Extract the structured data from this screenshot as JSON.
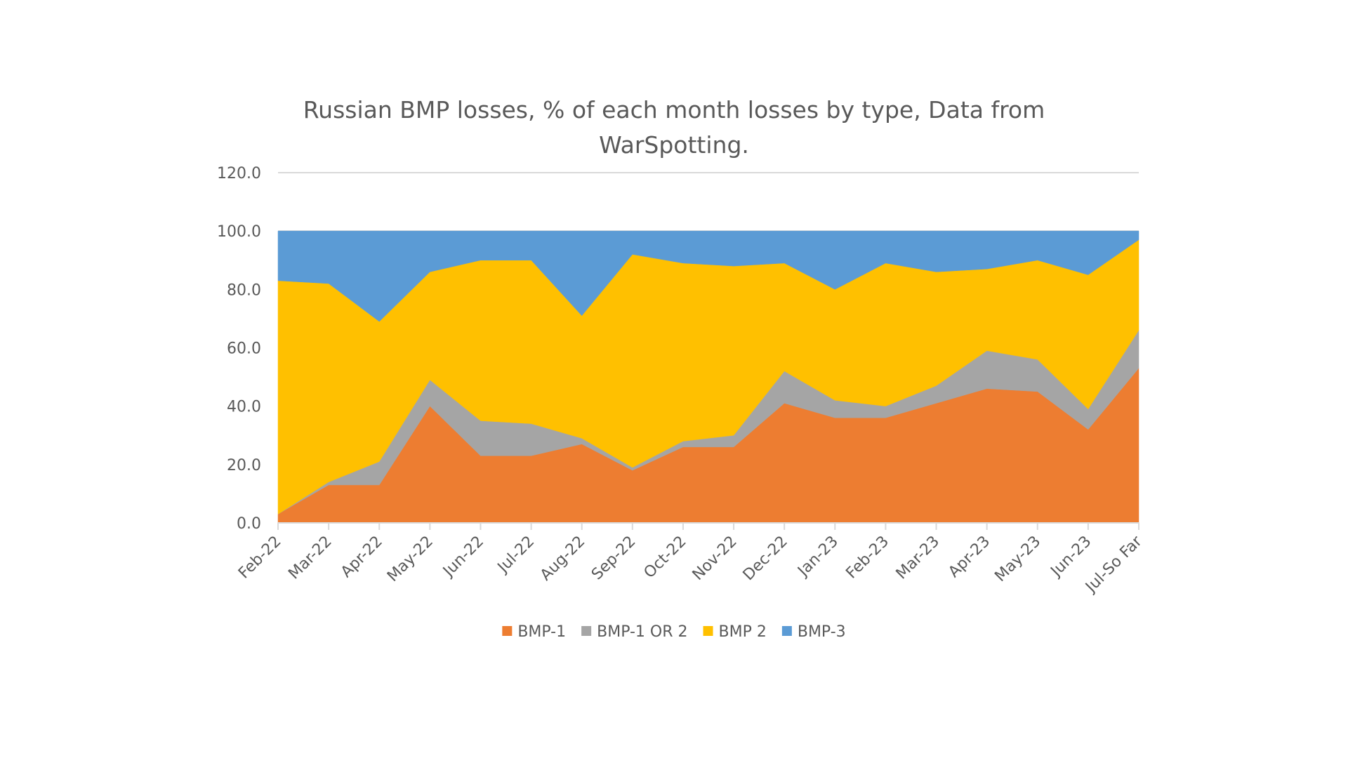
{
  "chart_data": {
    "type": "area",
    "stacked": true,
    "title_line1": "Russian BMP losses, % of each month losses by type, Data from",
    "title_line2": "WarSpotting.",
    "xlabel": "",
    "ylabel": "",
    "ylim": [
      0,
      120
    ],
    "yticks": [
      "0.0",
      "20.0",
      "40.0",
      "60.0",
      "80.0",
      "100.0",
      "120.0"
    ],
    "grid": true,
    "legend_position": "bottom",
    "categories": [
      "Feb-22",
      "Mar-22",
      "Apr-22",
      "May-22",
      "Jun-22",
      "Jul-22",
      "Aug-22",
      "Sep-22",
      "Oct-22",
      "Nov-22",
      "Dec-22",
      "Jan-23",
      "Feb-23",
      "Mar-23",
      "Apr-23",
      "May-23",
      "Jun-23",
      "Jul-So Far"
    ],
    "series": [
      {
        "name": "BMP-1",
        "color": "#ED7D31",
        "values": [
          3,
          13,
          13,
          40,
          23,
          23,
          27,
          18,
          26,
          26,
          41,
          36,
          36,
          41,
          46,
          45,
          32,
          53
        ]
      },
      {
        "name": "BMP-1 OR 2",
        "color": "#A5A5A5",
        "values": [
          0,
          1,
          8,
          9,
          12,
          11,
          2,
          1,
          2,
          4,
          11,
          6,
          4,
          6,
          13,
          11,
          7,
          13
        ]
      },
      {
        "name": "BMP 2",
        "color": "#FFC000",
        "values": [
          80,
          68,
          48,
          37,
          55,
          56,
          42,
          73,
          61,
          58,
          37,
          38,
          49,
          39,
          28,
          34,
          46,
          31
        ]
      },
      {
        "name": "BMP-3",
        "color": "#5B9BD5",
        "values": [
          17,
          18,
          31,
          14,
          10,
          10,
          29,
          8,
          11,
          12,
          11,
          20,
          11,
          14,
          13,
          10,
          15,
          3
        ]
      }
    ]
  }
}
